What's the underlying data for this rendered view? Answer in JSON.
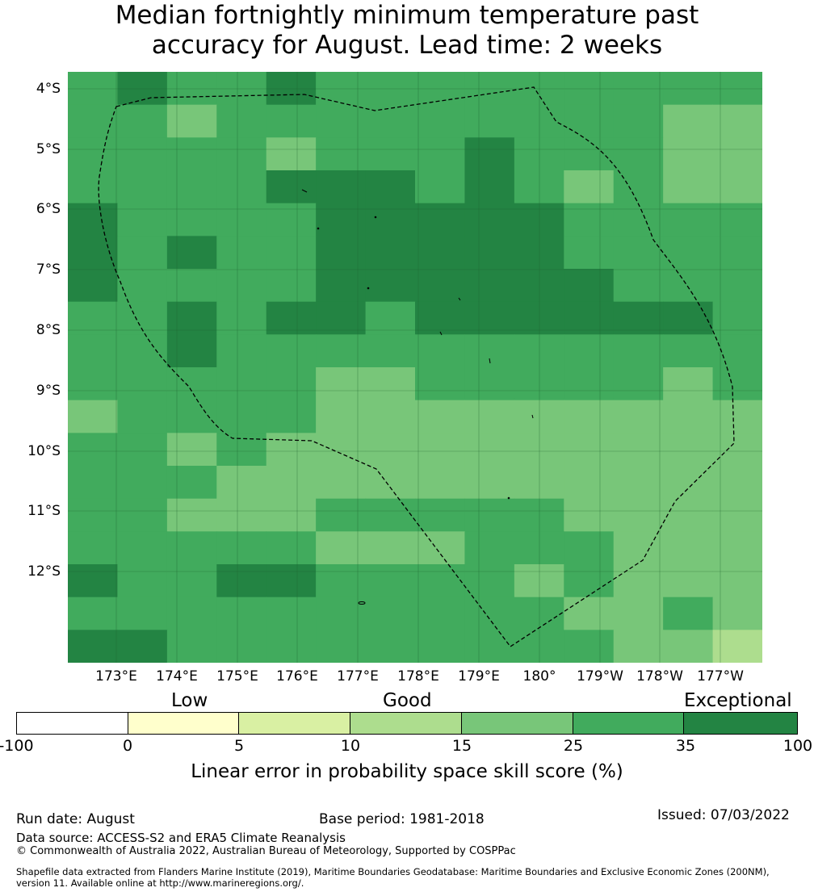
{
  "title_line1": "Median fortnightly minimum temperature past",
  "title_line2": "accuracy for August. Lead time: 2 weeks",
  "map": {
    "lat_labels": [
      "4°S",
      "5°S",
      "6°S",
      "7°S",
      "8°S",
      "9°S",
      "10°S",
      "11°S",
      "12°S"
    ],
    "lon_labels": [
      "173°E",
      "174°E",
      "175°E",
      "176°E",
      "177°E",
      "178°E",
      "179°E",
      "180°",
      "179°W",
      "178°W",
      "177°W"
    ],
    "grid_values": [
      [
        5,
        6,
        5,
        5,
        6,
        5,
        5,
        5,
        5,
        5,
        5,
        5,
        5,
        5
      ],
      [
        5,
        5,
        4,
        5,
        5,
        5,
        5,
        5,
        5,
        5,
        5,
        5,
        4,
        4
      ],
      [
        5,
        5,
        5,
        5,
        4,
        5,
        5,
        5,
        6,
        5,
        5,
        5,
        4,
        4
      ],
      [
        5,
        5,
        5,
        5,
        6,
        6,
        6,
        5,
        6,
        5,
        4,
        5,
        4,
        4
      ],
      [
        6,
        5,
        5,
        5,
        5,
        6,
        6,
        6,
        6,
        6,
        5,
        5,
        5,
        5
      ],
      [
        6,
        5,
        6,
        5,
        5,
        6,
        6,
        6,
        6,
        6,
        5,
        5,
        5,
        5
      ],
      [
        6,
        5,
        5,
        5,
        5,
        6,
        6,
        6,
        6,
        6,
        6,
        5,
        5,
        5
      ],
      [
        5,
        5,
        6,
        5,
        6,
        6,
        5,
        6,
        6,
        6,
        6,
        6,
        6,
        5
      ],
      [
        5,
        5,
        6,
        5,
        5,
        5,
        5,
        5,
        5,
        5,
        5,
        5,
        5,
        5
      ],
      [
        5,
        5,
        5,
        5,
        5,
        4,
        4,
        5,
        5,
        5,
        5,
        5,
        4,
        5
      ],
      [
        4,
        5,
        5,
        5,
        5,
        4,
        4,
        4,
        4,
        4,
        4,
        4,
        4,
        4
      ],
      [
        5,
        5,
        4,
        5,
        4,
        4,
        4,
        4,
        4,
        4,
        4,
        4,
        4,
        4
      ],
      [
        5,
        5,
        5,
        4,
        4,
        4,
        4,
        4,
        4,
        4,
        4,
        4,
        4,
        4
      ],
      [
        5,
        5,
        4,
        4,
        4,
        5,
        5,
        5,
        5,
        5,
        4,
        4,
        4,
        4
      ],
      [
        5,
        5,
        5,
        5,
        5,
        4,
        4,
        4,
        5,
        5,
        5,
        4,
        4,
        4
      ],
      [
        6,
        5,
        5,
        6,
        6,
        5,
        5,
        5,
        5,
        4,
        5,
        4,
        4,
        4
      ],
      [
        5,
        5,
        5,
        5,
        5,
        5,
        5,
        5,
        5,
        5,
        4,
        4,
        5,
        4
      ],
      [
        6,
        6,
        5,
        5,
        5,
        5,
        5,
        5,
        5,
        5,
        5,
        4,
        4,
        3
      ]
    ],
    "ocean_color": "#41ab5d",
    "boundary_color": "#000000"
  },
  "categories": {
    "low": "Low",
    "good": "Good",
    "exceptional": "Exceptional"
  },
  "colorbar": {
    "ticks": [
      "-100",
      "0",
      "5",
      "10",
      "15",
      "25",
      "35",
      "100"
    ],
    "colors": [
      "#ffffff",
      "#ffffcc",
      "#d9f0a3",
      "#addd8e",
      "#78c679",
      "#41ab5d",
      "#238443"
    ],
    "label": "Linear error in probability space skill score (%)"
  },
  "footer": {
    "run_date": "Run date: August",
    "base_period": "Base period: 1981-2018",
    "issued": "Issued: 07/03/2022",
    "data_source": "Data source: ACCESS-S2 and ERA5 Climate Reanalysis",
    "copyright": "© Commonwealth of Australia 2022, Australian Bureau of Meteorology, Supported by COSPPac",
    "shapefile1": "Shapefile data extracted from Flanders Marine Institute (2019), Maritime Boundaries Geodatabase: Maritime Boundaries and Exclusive Economic Zones (200NM),",
    "shapefile2": "version 11. Available online at http://www.marineregions.org/."
  }
}
